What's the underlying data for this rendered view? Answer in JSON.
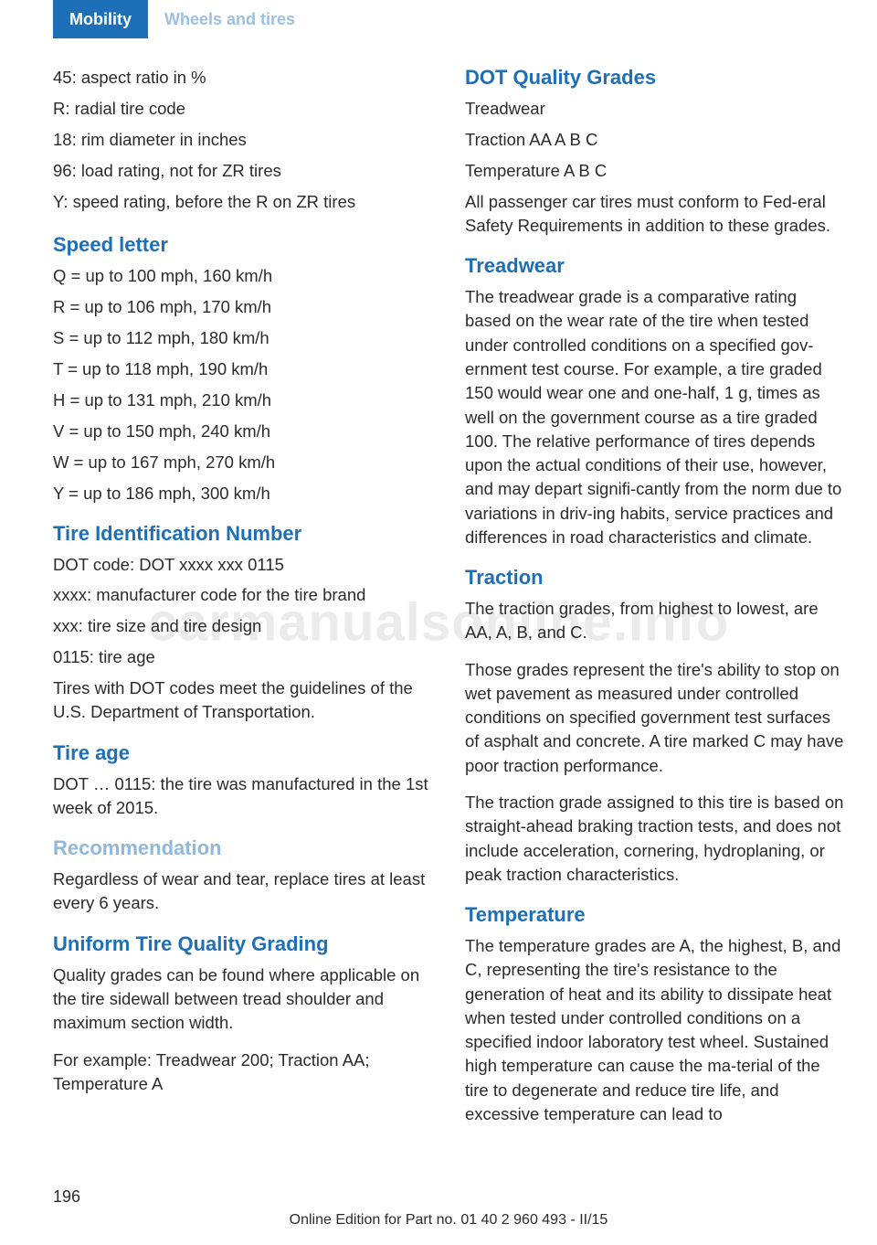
{
  "watermark": "carmanualsonline.info",
  "header": {
    "active_tab": "Mobility",
    "inactive_tab": "Wheels and tires"
  },
  "left": {
    "intro_lines": [
      "45: aspect ratio in %",
      "R: radial tire code",
      "18: rim diameter in inches",
      "96: load rating, not for ZR tires",
      "Y: speed rating, before the R on ZR tires"
    ],
    "speed_letter": {
      "heading": "Speed letter",
      "lines": [
        "Q = up to 100 mph, 160 km/h",
        "R = up to 106 mph, 170 km/h",
        "S = up to 112 mph, 180 km/h",
        "T = up to 118 mph, 190 km/h",
        "H = up to 131 mph, 210 km/h",
        "V = up to 150 mph, 240 km/h",
        "W = up to 167 mph, 270 km/h",
        "Y = up to 186 mph, 300 km/h"
      ]
    },
    "tin": {
      "heading": "Tire Identification Number",
      "lines": [
        "DOT code: DOT xxxx xxx 0115",
        "xxxx: manufacturer code for the tire brand",
        "xxx: tire size and tire design",
        "0115: tire age"
      ],
      "para": "Tires with DOT codes meet the guidelines of the U.S. Department of Transportation."
    },
    "tire_age": {
      "heading": "Tire age",
      "para": "DOT … 0115: the tire was manufactured in the 1st week of 2015."
    },
    "recommendation": {
      "heading": "Recommendation",
      "para": "Regardless of wear and tear, replace tires at least every 6 years."
    },
    "utqg": {
      "heading": "Uniform Tire Quality Grading",
      "para1": "Quality grades can be found where applicable on the tire sidewall between tread shoulder and maximum section width.",
      "para2": "For example: Treadwear 200; Traction AA; Temperature A"
    }
  },
  "right": {
    "dot": {
      "heading": "DOT Quality Grades",
      "lines": [
        "Treadwear",
        "Traction AA A B C",
        "Temperature A B C"
      ],
      "para": "All passenger car tires must conform to Fed‐eral Safety Requirements in addition to these grades."
    },
    "treadwear": {
      "heading": "Treadwear",
      "para": "The treadwear grade is a comparative rating based on the wear rate of the tire when tested under controlled conditions on a specified gov‐ernment test course. For example, a tire graded 150 would wear one and one-half, 1 g, times as well on the government course as a tire graded 100. The relative performance of tires depends upon the actual conditions of their use, however, and may depart signifi‐cantly from the norm due to variations in driv‐ing habits, service practices and differences in road characteristics and climate."
    },
    "traction": {
      "heading": "Traction",
      "para1": "The traction grades, from highest to lowest, are AA, A, B, and C.",
      "para2": "Those grades represent the tire's ability to stop on wet pavement as measured under controlled conditions on specified government test surfaces of asphalt and concrete. A tire marked C may have poor traction performance.",
      "para3": "The traction grade assigned to this tire is based on straight-ahead braking traction tests, and does not include acceleration, cornering, hydroplaning, or peak traction characteristics."
    },
    "temperature": {
      "heading": "Temperature",
      "para": "The temperature grades are A, the highest, B, and C, representing the tire's resistance to the generation of heat and its ability to dissipate heat when tested under controlled conditions on a specified indoor laboratory test wheel. Sustained high temperature can cause the ma‐terial of the tire to degenerate and reduce tire life, and excessive temperature can lead to"
    }
  },
  "footer": {
    "page_num": "196",
    "edition": "Online Edition for Part no. 01 40 2 960 493 - II/15"
  }
}
